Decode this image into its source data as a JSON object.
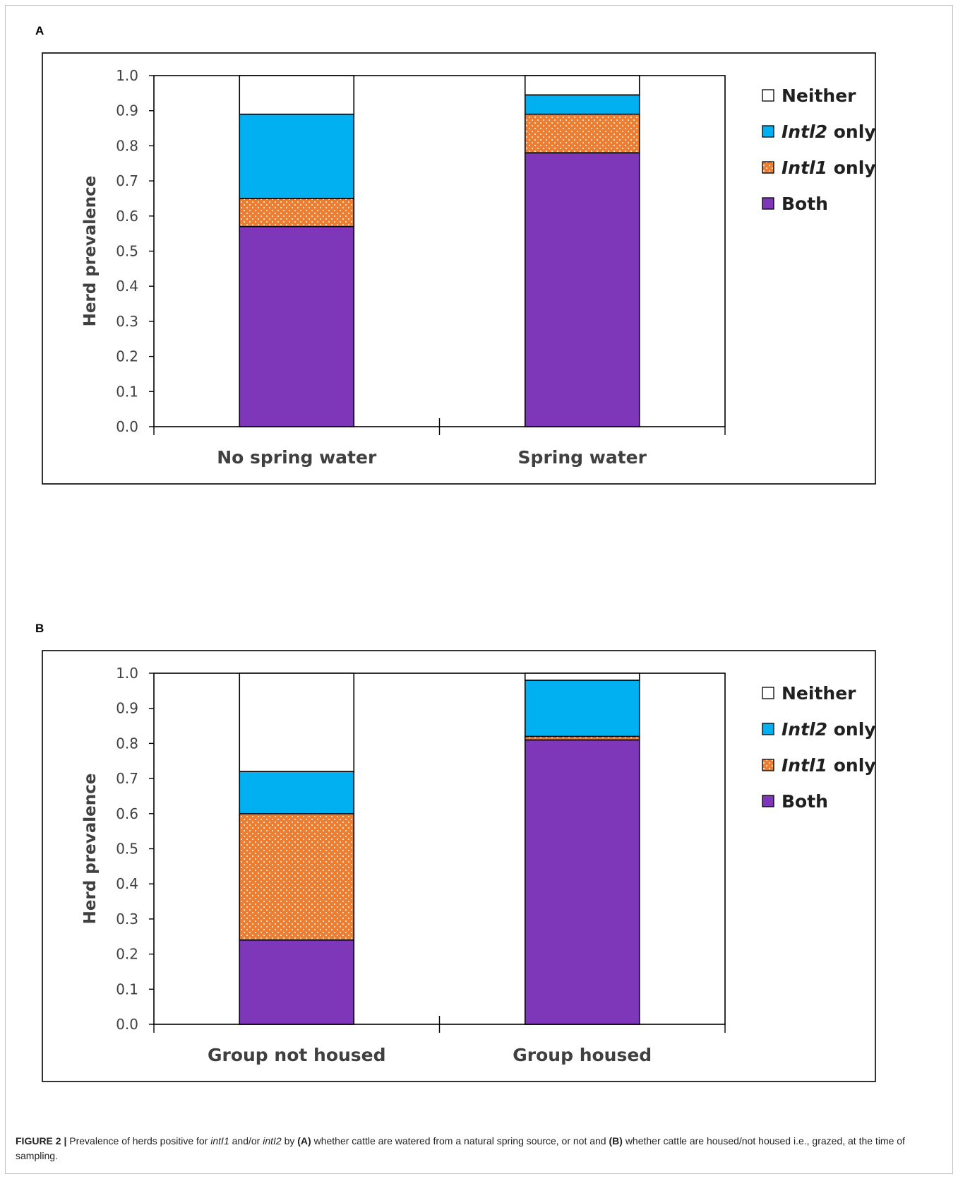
{
  "caption": {
    "label": "FIGURE 2 |",
    "t1": "Prevalence of herds positive for",
    "g1": "intI1",
    "t2": "and/or",
    "g2": "intI2",
    "t3": "by",
    "a": "(A)",
    "t4": "whether cattle are watered from a natural spring source, or not and",
    "b": "(B)",
    "t5": "whether cattle are housed/not housed i.e., grazed, at the time of sampling."
  },
  "colors": {
    "both": "#7e37b8",
    "intl1": "#ed7d31",
    "intl2": "#00b0f0",
    "neither": "#ffffff"
  },
  "chart_data": [
    {
      "panel": "A",
      "type": "bar",
      "stacked": true,
      "ylabel": "Herd prevalence",
      "ylim": [
        0,
        1
      ],
      "yticks": [
        "0.0",
        "0.1",
        "0.2",
        "0.3",
        "0.4",
        "0.5",
        "0.6",
        "0.7",
        "0.8",
        "0.9",
        "1.0"
      ],
      "categories": [
        "No spring water",
        "Spring water"
      ],
      "series": [
        {
          "key": "both",
          "values": [
            0.57,
            0.78
          ]
        },
        {
          "key": "intl1",
          "values": [
            0.08,
            0.11
          ]
        },
        {
          "key": "intl2",
          "values": [
            0.24,
            0.055
          ]
        },
        {
          "key": "neither",
          "values": [
            0.11,
            0.055
          ]
        }
      ],
      "legend": [
        {
          "key": "neither",
          "pre": "",
          "italic": "",
          "text": "Neither"
        },
        {
          "key": "intl2",
          "pre": "",
          "italic": "Intl2",
          "text": " only"
        },
        {
          "key": "intl1",
          "pre": "",
          "italic": "Intl1",
          "text": " only"
        },
        {
          "key": "both",
          "pre": "",
          "italic": "",
          "text": "Both"
        }
      ],
      "legend_position": "right"
    },
    {
      "panel": "B",
      "type": "bar",
      "stacked": true,
      "ylabel": "Herd prevalence",
      "ylim": [
        0,
        1
      ],
      "yticks": [
        "0.0",
        "0.1",
        "0.2",
        "0.3",
        "0.4",
        "0.5",
        "0.6",
        "0.7",
        "0.8",
        "0.9",
        "1.0"
      ],
      "categories": [
        "Group not housed",
        "Group housed"
      ],
      "series": [
        {
          "key": "both",
          "values": [
            0.24,
            0.81
          ]
        },
        {
          "key": "intl1",
          "values": [
            0.36,
            0.01
          ]
        },
        {
          "key": "intl2",
          "values": [
            0.12,
            0.16
          ]
        },
        {
          "key": "neither",
          "values": [
            0.28,
            0.02
          ]
        }
      ],
      "legend": [
        {
          "key": "neither",
          "pre": "",
          "italic": "",
          "text": "Neither"
        },
        {
          "key": "intl2",
          "pre": "",
          "italic": "Intl2",
          "text": " only"
        },
        {
          "key": "intl1",
          "pre": "",
          "italic": "Intl1",
          "text": " only"
        },
        {
          "key": "both",
          "pre": "",
          "italic": "",
          "text": "Both"
        }
      ],
      "legend_position": "right"
    }
  ],
  "panels": [
    "A",
    "B"
  ]
}
